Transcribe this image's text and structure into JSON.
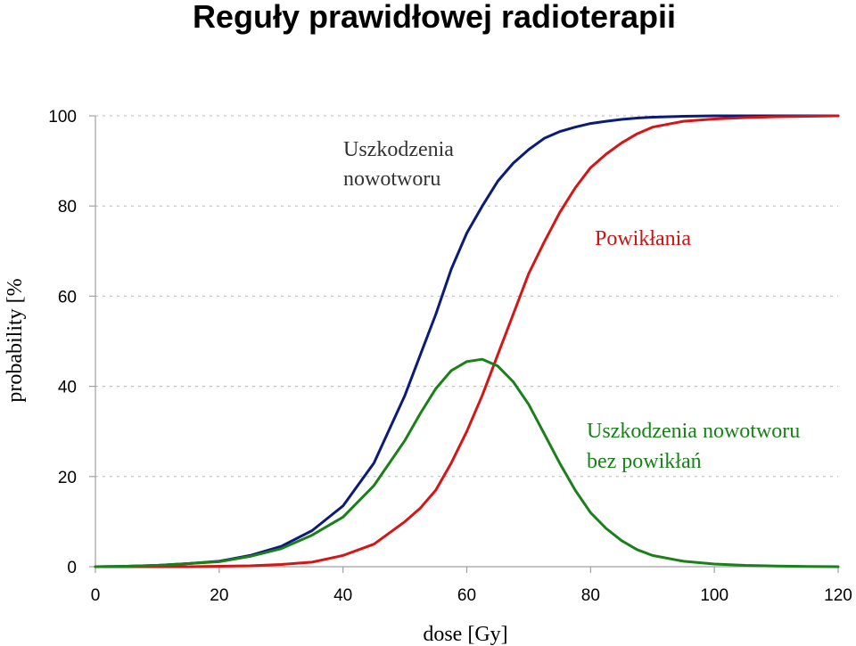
{
  "chart_data": {
    "type": "line",
    "title": "Reguły prawidłowej radioterapii",
    "xlabel": "dose [Gy]",
    "ylabel": "probability [%",
    "xlim": [
      0,
      120
    ],
    "ylim": [
      0,
      100
    ],
    "x_ticks": [
      "0",
      "20",
      "40",
      "60",
      "80",
      "100",
      "120"
    ],
    "y_ticks": [
      "0",
      "20",
      "40",
      "60",
      "80",
      "100"
    ],
    "grid": "horizontal dashed",
    "x": [
      0,
      5,
      10,
      15,
      20,
      25,
      30,
      35,
      40,
      45,
      50,
      52.5,
      55,
      57.5,
      60,
      62.5,
      65,
      67.5,
      70,
      72.5,
      75,
      77.5,
      80,
      82.5,
      85,
      87.5,
      90,
      95,
      100,
      105,
      110,
      115,
      120
    ],
    "series": [
      {
        "name": "Uszkodzenia nowotworu",
        "color": "#0c1a7a",
        "values": [
          0,
          0.1,
          0.3,
          0.7,
          1.2,
          2.5,
          4.5,
          8,
          13.5,
          23,
          38,
          47,
          56,
          66,
          74,
          80,
          85.5,
          89.5,
          92.5,
          95,
          96.5,
          97.5,
          98.3,
          98.8,
          99.2,
          99.5,
          99.7,
          99.9,
          100,
          100,
          100,
          100,
          100
        ]
      },
      {
        "name": "Powikłania",
        "color": "#d41616",
        "values": [
          0,
          0,
          0,
          0,
          0.1,
          0.2,
          0.5,
          1,
          2.5,
          5,
          10,
          13,
          17,
          23,
          30,
          38,
          47,
          56,
          65,
          72,
          78.5,
          84,
          88.5,
          91.5,
          94,
          96,
          97.5,
          98.8,
          99.3,
          99.6,
          99.8,
          99.9,
          100
        ]
      },
      {
        "name": "Uszkodzenia nowotworu bez powikłań",
        "color": "#1a801a",
        "values": [
          0,
          0.1,
          0.3,
          0.7,
          1.1,
          2.3,
          4,
          7,
          11,
          18,
          28,
          34,
          39.5,
          43.5,
          45.5,
          46,
          44.5,
          41,
          36,
          29.5,
          23,
          17,
          12,
          8.5,
          5.8,
          3.8,
          2.5,
          1.2,
          0.6,
          0.3,
          0.15,
          0.05,
          0
        ]
      }
    ],
    "annotations": {
      "tumor": [
        "Uszkodzenia",
        "nowotworu"
      ],
      "complications": "Powikłania",
      "uncomplicated": [
        "Uszkodzenia nowotworu",
        "bez powikłań"
      ]
    }
  }
}
